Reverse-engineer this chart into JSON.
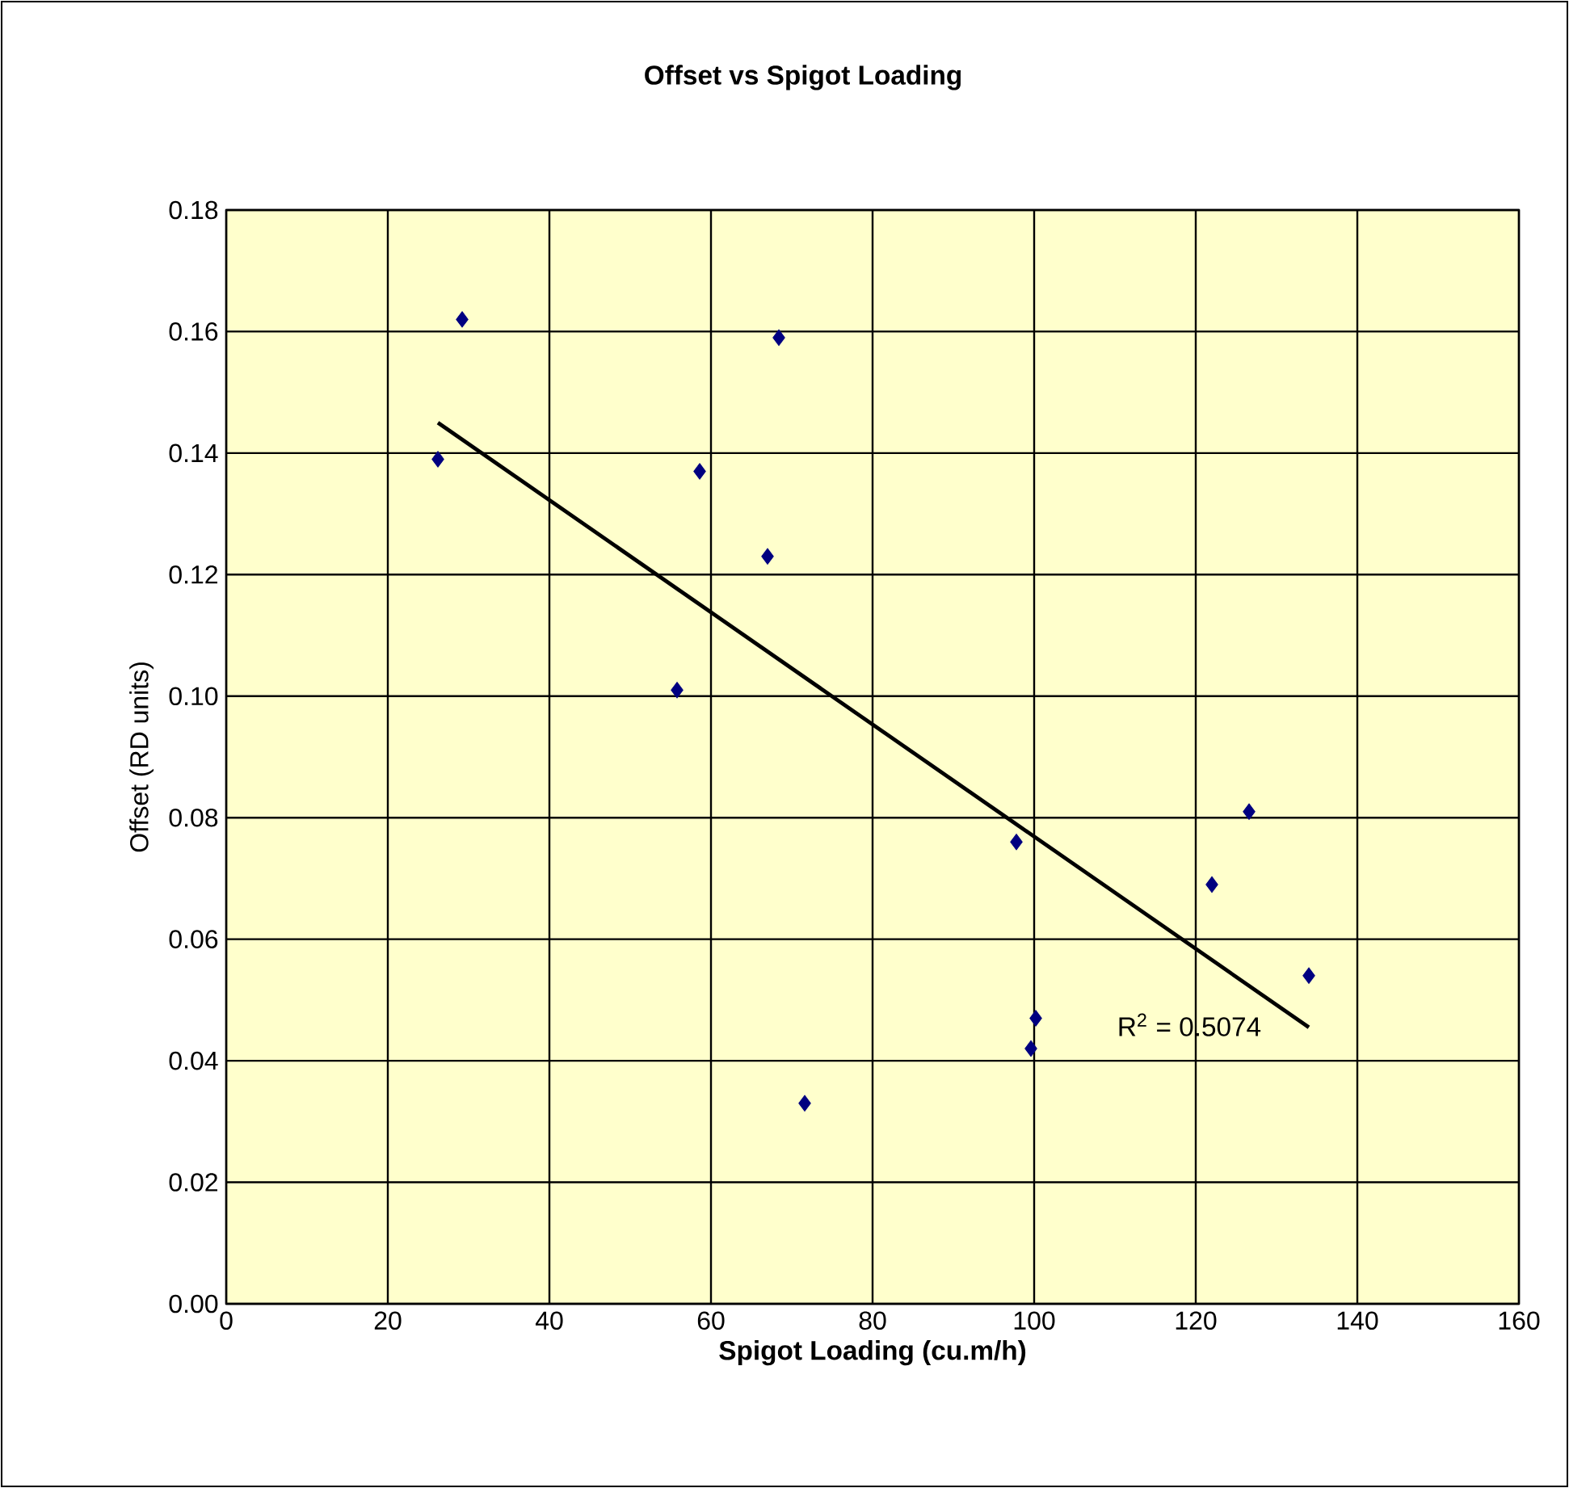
{
  "chart_data": {
    "type": "scatter",
    "title": "Offset vs Spigot Loading",
    "xlabel": "Spigot Loading (cu.m/h)",
    "ylabel": "Offset (RD units)",
    "xlim": [
      0,
      160
    ],
    "xticks": [
      0,
      20,
      40,
      60,
      80,
      100,
      120,
      140,
      160
    ],
    "ylim": [
      0,
      0.18
    ],
    "yticks": [
      {
        "value": 0,
        "label": "0.00"
      },
      {
        "value": 0.02,
        "label": "0.02"
      },
      {
        "value": 0.04,
        "label": "0.04"
      },
      {
        "value": 0.06,
        "label": "0.06"
      },
      {
        "value": 0.08,
        "label": "0.08"
      },
      {
        "value": 0.1,
        "label": "0.10"
      },
      {
        "value": 0.12,
        "label": "0.12"
      },
      {
        "value": 0.14,
        "label": "0.14"
      },
      {
        "value": 0.16,
        "label": "0.16"
      },
      {
        "value": 0.18,
        "label": "0.18"
      }
    ],
    "grid": true,
    "series": [
      {
        "color": "#000080",
        "marker": "diamond",
        "x": [
          26.2,
          29.2,
          58.6,
          55.8,
          67,
          68.4,
          71.6,
          97.8,
          100.2,
          99.6,
          122,
          126.6,
          134
        ],
        "values": [
          0.139,
          0.162,
          0.137,
          0.101,
          0.123,
          0.159,
          0.033,
          0.076,
          0.047,
          0.042,
          0.069,
          0.081,
          0.054
        ]
      },
      {
        "type": "line",
        "color": "#000000",
        "x": [
          26.2,
          134
        ],
        "values": [
          0.145,
          0.0455
        ]
      }
    ],
    "annotations": [
      "R$^{2}$ = 0.5074"
    ]
  }
}
